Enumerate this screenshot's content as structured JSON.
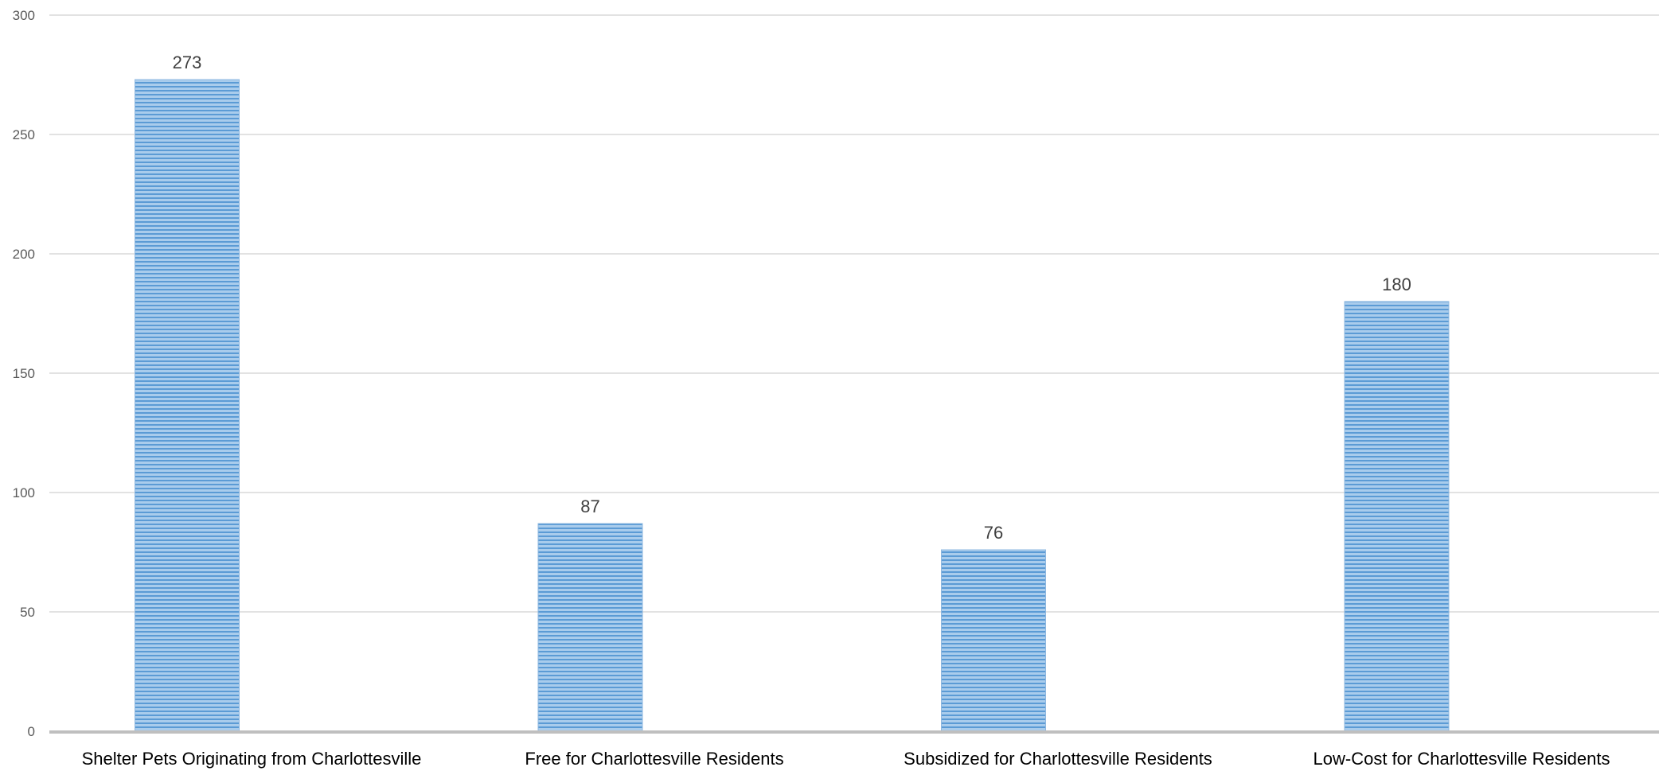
{
  "chart_data": {
    "type": "bar",
    "categories": [
      "Shelter Pets Originating from Charlottesville",
      "Free for Charlottesville Residents",
      "Subsidized for Charlottesville Residents",
      "Low-Cost for Charlottesville Residents"
    ],
    "values": [
      273,
      87,
      76,
      180
    ],
    "data_labels": [
      "273",
      "87",
      "76",
      "180"
    ],
    "title": "",
    "xlabel": "",
    "ylabel": "",
    "ylim": [
      0,
      300
    ],
    "yticks": [
      0,
      50,
      100,
      150,
      200,
      250,
      300
    ],
    "ytick_labels": [
      "0",
      "50",
      "100",
      "150",
      "200",
      "250",
      "300"
    ],
    "grid": true,
    "legend": "none",
    "colors": {
      "bar_fill": "#9dc3e6",
      "bar_stripe": "#5b9bd5",
      "grid": "#d9d9d9",
      "axis": "#bfbfbf"
    }
  }
}
